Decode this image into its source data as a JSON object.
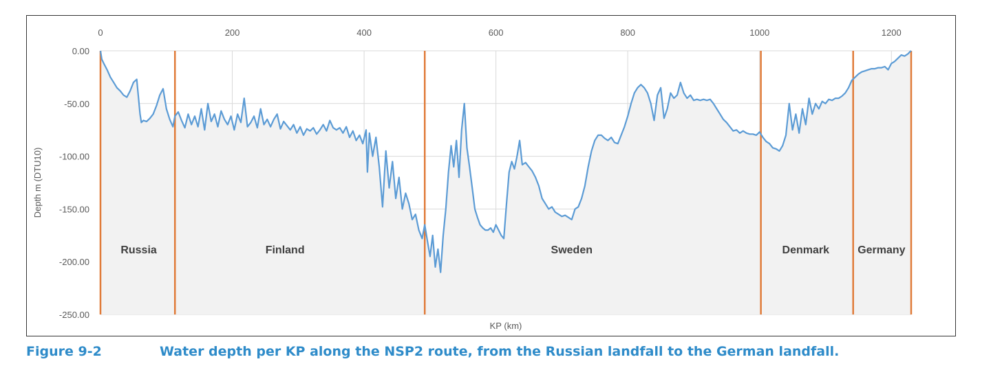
{
  "caption": {
    "number": "Figure 9-2",
    "text": "Water depth per KP along the NSP2 route, from the Russian landfall to the German landfall."
  },
  "colors": {
    "line": "#5b9bd5",
    "fill": "#f2f2f2",
    "boundary": "#e07b39",
    "grid": "#d9d9d9",
    "caption": "#2e8bc9"
  },
  "chart_data": {
    "type": "area",
    "title": "",
    "xlabel": "KP (km)",
    "ylabel": "Depth m (DTU10)",
    "xlim": [
      0,
      1230
    ],
    "ylim": [
      -250,
      0
    ],
    "x_axis_position": "top",
    "x_ticks": [
      "0",
      "200",
      "400",
      "600",
      "800",
      "1000",
      "1200"
    ],
    "y_ticks": [
      "0.00",
      "-50.00",
      "-100.00",
      "-150.00",
      "-200.00",
      "-250.00"
    ],
    "grid": true,
    "boundaries_kp": [
      0,
      113,
      492,
      1002,
      1142,
      1230
    ],
    "regions": [
      {
        "label": "Russia",
        "kp": 58
      },
      {
        "label": "Finland",
        "kp": 280
      },
      {
        "label": "Sweden",
        "kp": 715
      },
      {
        "label": "Denmark",
        "kp": 1070
      },
      {
        "label": "Germany",
        "kp": 1185
      }
    ],
    "series": [
      {
        "x": [
          0,
          2,
          5,
          10,
          15,
          20,
          25,
          30,
          35,
          40,
          45,
          50,
          55,
          60,
          62,
          65,
          70,
          75,
          80,
          85,
          90,
          95,
          100,
          105,
          110,
          113,
          118,
          123,
          128,
          133,
          138,
          143,
          148,
          153,
          158,
          163,
          168,
          173,
          178,
          183,
          188,
          193,
          198,
          203,
          208,
          213,
          218,
          223,
          228,
          233,
          238,
          243,
          248,
          253,
          258,
          263,
          268,
          273,
          278,
          283,
          288,
          293,
          298,
          303,
          308,
          313,
          318,
          323,
          328,
          333,
          338,
          343,
          348,
          353,
          358,
          363,
          368,
          373,
          378,
          383,
          388,
          393,
          398,
          403,
          405,
          408,
          413,
          418,
          423,
          428,
          433,
          438,
          443,
          448,
          453,
          458,
          463,
          468,
          473,
          478,
          483,
          488,
          492,
          496,
          500,
          504,
          508,
          512,
          516,
          520,
          524,
          528,
          532,
          536,
          540,
          544,
          548,
          552,
          556,
          560,
          564,
          568,
          572,
          576,
          580,
          584,
          588,
          592,
          596,
          600,
          604,
          608,
          612,
          616,
          620,
          624,
          628,
          632,
          636,
          640,
          645,
          650,
          655,
          660,
          665,
          670,
          675,
          680,
          685,
          690,
          695,
          700,
          705,
          710,
          715,
          720,
          725,
          730,
          735,
          740,
          745,
          750,
          755,
          760,
          765,
          770,
          775,
          780,
          785,
          790,
          795,
          800,
          805,
          810,
          815,
          820,
          825,
          830,
          835,
          840,
          845,
          850,
          855,
          860,
          865,
          870,
          875,
          880,
          885,
          890,
          895,
          900,
          905,
          910,
          915,
          920,
          925,
          930,
          935,
          940,
          945,
          950,
          955,
          960,
          965,
          970,
          975,
          980,
          985,
          990,
          995,
          1000,
          1005,
          1010,
          1015,
          1020,
          1025,
          1030,
          1035,
          1040,
          1045,
          1050,
          1055,
          1060,
          1065,
          1070,
          1075,
          1080,
          1085,
          1090,
          1095,
          1100,
          1105,
          1110,
          1115,
          1120,
          1125,
          1130,
          1135,
          1140,
          1145,
          1150,
          1155,
          1160,
          1165,
          1170,
          1175,
          1180,
          1185,
          1190,
          1195,
          1200,
          1205,
          1210,
          1215,
          1220,
          1225,
          1228,
          1230
        ],
        "y": [
          0,
          -8,
          -12,
          -18,
          -25,
          -30,
          -35,
          -38,
          -42,
          -44,
          -38,
          -30,
          -27,
          -60,
          -68,
          -66,
          -67,
          -64,
          -60,
          -52,
          -42,
          -36,
          -55,
          -65,
          -72,
          -62,
          -58,
          -66,
          -73,
          -60,
          -70,
          -62,
          -72,
          -55,
          -75,
          -50,
          -67,
          -60,
          -72,
          -57,
          -65,
          -70,
          -62,
          -75,
          -60,
          -68,
          -45,
          -72,
          -68,
          -62,
          -73,
          -55,
          -70,
          -65,
          -72,
          -65,
          -60,
          -74,
          -67,
          -71,
          -75,
          -70,
          -78,
          -72,
          -80,
          -74,
          -76,
          -73,
          -79,
          -75,
          -70,
          -76,
          -66,
          -73,
          -75,
          -73,
          -78,
          -72,
          -82,
          -76,
          -85,
          -80,
          -88,
          -75,
          -115,
          -78,
          -100,
          -82,
          -110,
          -148,
          -95,
          -130,
          -105,
          -140,
          -120,
          -150,
          -135,
          -145,
          -160,
          -155,
          -170,
          -178,
          -165,
          -180,
          -195,
          -175,
          -205,
          -188,
          -210,
          -175,
          -150,
          -115,
          -90,
          -110,
          -85,
          -120,
          -75,
          -50,
          -92,
          -110,
          -130,
          -150,
          -158,
          -165,
          -168,
          -170,
          -170,
          -168,
          -172,
          -165,
          -170,
          -175,
          -178,
          -145,
          -115,
          -105,
          -112,
          -100,
          -85,
          -108,
          -106,
          -110,
          -114,
          -120,
          -128,
          -140,
          -145,
          -150,
          -148,
          -153,
          -155,
          -157,
          -156,
          -158,
          -160,
          -150,
          -148,
          -140,
          -128,
          -110,
          -95,
          -85,
          -80,
          -80,
          -83,
          -85,
          -82,
          -87,
          -88,
          -80,
          -72,
          -62,
          -50,
          -40,
          -35,
          -32,
          -35,
          -40,
          -50,
          -66,
          -42,
          -35,
          -64,
          -55,
          -40,
          -45,
          -42,
          -30,
          -40,
          -45,
          -42,
          -47,
          -46,
          -47,
          -46,
          -47,
          -46,
          -50,
          -55,
          -60,
          -65,
          -68,
          -72,
          -76,
          -75,
          -78,
          -76,
          -78,
          -79,
          -79,
          -80,
          -77,
          -82,
          -86,
          -88,
          -92,
          -93,
          -95,
          -90,
          -80,
          -50,
          -75,
          -60,
          -78,
          -55,
          -70,
          -45,
          -60,
          -50,
          -55,
          -48,
          -50,
          -46,
          -47,
          -45,
          -45,
          -43,
          -40,
          -35,
          -28,
          -25,
          -22,
          -20,
          -19,
          -18,
          -17,
          -17,
          -16,
          -16,
          -15,
          -18,
          -12,
          -10,
          -7,
          -4,
          -5,
          -3,
          -1,
          0
        ]
      }
    ]
  }
}
